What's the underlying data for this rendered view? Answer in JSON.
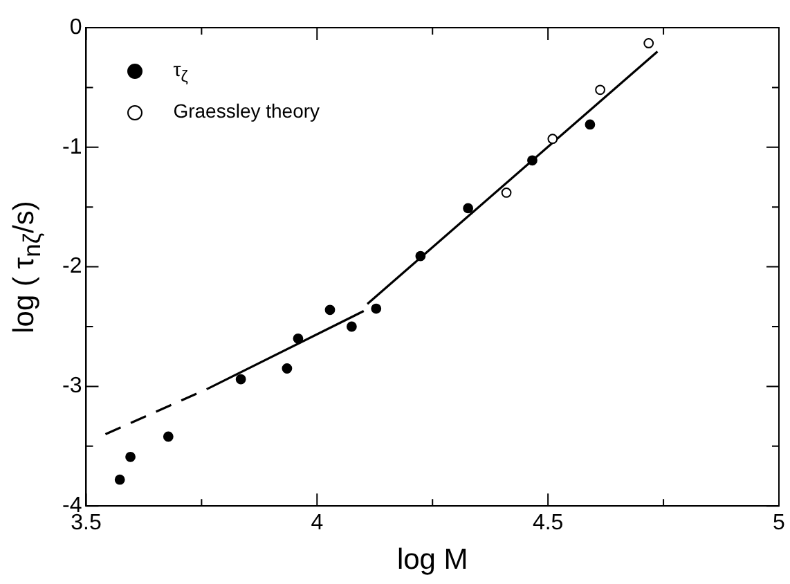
{
  "chart_data": {
    "type": "scatter",
    "xlabel": "log M",
    "ylabel": "log ( τ$_{nζ}$/s)",
    "xlim": [
      3.5,
      5
    ],
    "ylim": [
      -4,
      0
    ],
    "xticks": [
      3.5,
      {
        "value": 3.75,
        "label": null
      },
      4,
      {
        "value": 4.25,
        "label": null
      },
      4.5,
      {
        "value": 4.75,
        "label": null
      },
      5
    ],
    "yticks": [
      -4,
      {
        "value": -3.5,
        "label": null
      },
      -3,
      {
        "value": -2.5,
        "label": null
      },
      -2,
      {
        "value": -1.5,
        "label": null
      },
      -1,
      {
        "value": -0.5,
        "label": null
      },
      0
    ],
    "grid": false,
    "legend": "top left",
    "series": [
      {
        "name": "τ$_{ζ}$",
        "color": "#000000",
        "marker": "circle",
        "x": [
          3.573,
          3.596,
          3.678,
          3.835,
          3.935,
          3.959,
          4.028,
          4.075,
          4.128,
          4.224,
          4.327,
          4.466,
          4.591
        ],
        "values": [
          -3.78,
          -3.59,
          -3.42,
          -2.94,
          -2.85,
          -2.6,
          -2.36,
          -2.5,
          -2.35,
          -1.91,
          -1.51,
          -1.11,
          -0.81
        ]
      },
      {
        "name": "Graessley theory",
        "color": "#ffffff",
        "marker": "circle",
        "x": [
          4.41,
          4.51,
          4.613,
          4.718
        ],
        "values": [
          -1.38,
          -0.93,
          -0.52,
          -0.13
        ]
      },
      {
        "type": "line",
        "color": "#000000",
        "line_style": "dashed",
        "marker": "none",
        "x": [
          3.542,
          3.763
        ],
        "values": [
          -3.4,
          -3.02
        ]
      },
      {
        "type": "line",
        "color": "#000000",
        "line_style": "solid",
        "marker": "none",
        "x": [
          3.763,
          4.101
        ],
        "values": [
          -3.02,
          -2.37
        ]
      },
      {
        "type": "line",
        "color": "#000000",
        "line_style": "solid",
        "marker": "none",
        "x": [
          4.109,
          4.737
        ],
        "values": [
          -2.31,
          -0.2
        ]
      }
    ]
  }
}
